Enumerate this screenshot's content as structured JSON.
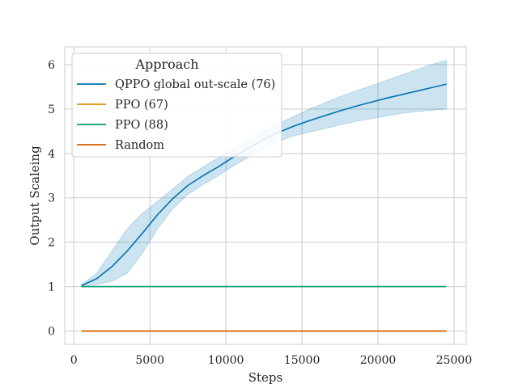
{
  "chart_data": {
    "type": "line",
    "title": "",
    "xlabel": "Steps",
    "ylabel": "Output Scaleing",
    "xlim": [
      -600,
      25800
    ],
    "ylim": [
      -0.3,
      6.4
    ],
    "xticks": [
      0,
      5000,
      10000,
      15000,
      20000,
      25000
    ],
    "yticks": [
      0,
      1,
      2,
      3,
      4,
      5,
      6
    ],
    "grid": true,
    "legend": {
      "title": "Approach",
      "position": "top-left"
    },
    "series": [
      {
        "name": "QPPO global out-scale (76)",
        "color": "#0173b2",
        "x": [
          500,
          1500,
          2500,
          3500,
          4500,
          5500,
          6500,
          7500,
          8500,
          9500,
          10500,
          11500,
          12500,
          13500,
          14500,
          15500,
          16500,
          17500,
          18500,
          19500,
          20500,
          21500,
          22500,
          23500,
          24500
        ],
        "y": [
          1.02,
          1.18,
          1.45,
          1.8,
          2.2,
          2.62,
          2.98,
          3.28,
          3.5,
          3.7,
          3.92,
          4.12,
          4.32,
          4.48,
          4.62,
          4.74,
          4.85,
          4.96,
          5.06,
          5.15,
          5.24,
          5.32,
          5.4,
          5.48,
          5.56
        ],
        "ci_low": [
          1.0,
          1.05,
          1.12,
          1.3,
          1.75,
          2.3,
          2.75,
          3.08,
          3.3,
          3.5,
          3.72,
          3.92,
          4.1,
          4.28,
          4.4,
          4.48,
          4.56,
          4.64,
          4.72,
          4.78,
          4.84,
          4.9,
          4.94,
          4.97,
          5.0
        ],
        "ci_high": [
          1.05,
          1.3,
          1.8,
          2.3,
          2.65,
          2.92,
          3.2,
          3.48,
          3.7,
          3.9,
          4.12,
          4.32,
          4.52,
          4.68,
          4.84,
          5.0,
          5.14,
          5.28,
          5.4,
          5.52,
          5.64,
          5.76,
          5.88,
          6.0,
          6.1
        ]
      },
      {
        "name": "PPO (67)",
        "color": "#de8f05",
        "x": [
          500,
          24500
        ],
        "y": [
          0,
          0
        ]
      },
      {
        "name": "PPO (88)",
        "color": "#029e73",
        "x": [
          500,
          24500
        ],
        "y": [
          1,
          1
        ]
      },
      {
        "name": "Random",
        "color": "#d55e00",
        "x": [
          500,
          24500
        ],
        "y": [
          0,
          0
        ]
      }
    ]
  }
}
